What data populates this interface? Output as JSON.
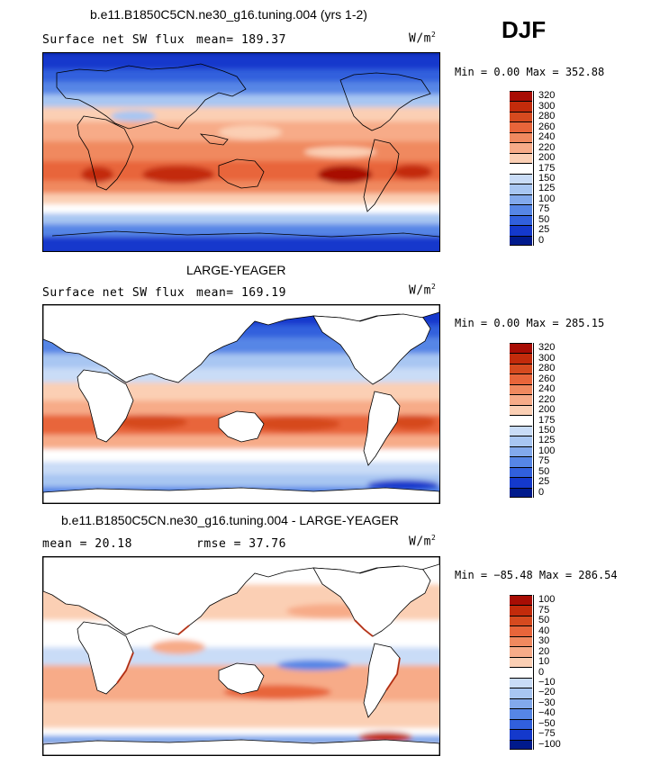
{
  "season": "DJF",
  "panels": [
    {
      "title": "b.e11.B1850C5CN.ne30_g16.tuning.004 (yrs 1-2)",
      "left_text": "Surface net SW flux",
      "mean_text": "mean= 189.37",
      "unit": "W/m",
      "unit_exp": "2",
      "minmax": "Min =   0.00 Max = 352.88",
      "ocean_only": false,
      "colorbar": [
        "320",
        "300",
        "280",
        "260",
        "240",
        "220",
        "200",
        "175",
        "150",
        "125",
        "100",
        "75",
        "50",
        "25",
        "0"
      ]
    },
    {
      "title": "LARGE-YEAGER",
      "left_text": "Surface net SW flux",
      "mean_text": "mean= 169.19",
      "unit": "W/m",
      "unit_exp": "2",
      "minmax": "Min =   0.00 Max = 285.15",
      "ocean_only": true,
      "colorbar": [
        "320",
        "300",
        "280",
        "260",
        "240",
        "220",
        "200",
        "175",
        "150",
        "125",
        "100",
        "75",
        "50",
        "25",
        "0"
      ]
    },
    {
      "title": "b.e11.B1850C5CN.ne30_g16.tuning.004 - LARGE-YEAGER",
      "left_text": "mean =   20.18",
      "mean_text": "rmse =   37.76",
      "unit": "W/m",
      "unit_exp": "2",
      "minmax": "Min = −85.48 Max = 286.54",
      "ocean_only": true,
      "colorbar": [
        "100",
        "75",
        "50",
        "40",
        "30",
        "20",
        "10",
        "0",
        "−10",
        "−20",
        "−30",
        "−40",
        "−50",
        "−75",
        "−100"
      ]
    }
  ],
  "palette": [
    "#a80d04",
    "#c32b0b",
    "#d64a1f",
    "#e8653a",
    "#f0895f",
    "#f7ab88",
    "#fbcfb4",
    "#ffffff",
    "#c9dcf7",
    "#a8c6f2",
    "#82a9ec",
    "#5686e6",
    "#3160dd",
    "#1439cc",
    "#001a8c"
  ]
}
